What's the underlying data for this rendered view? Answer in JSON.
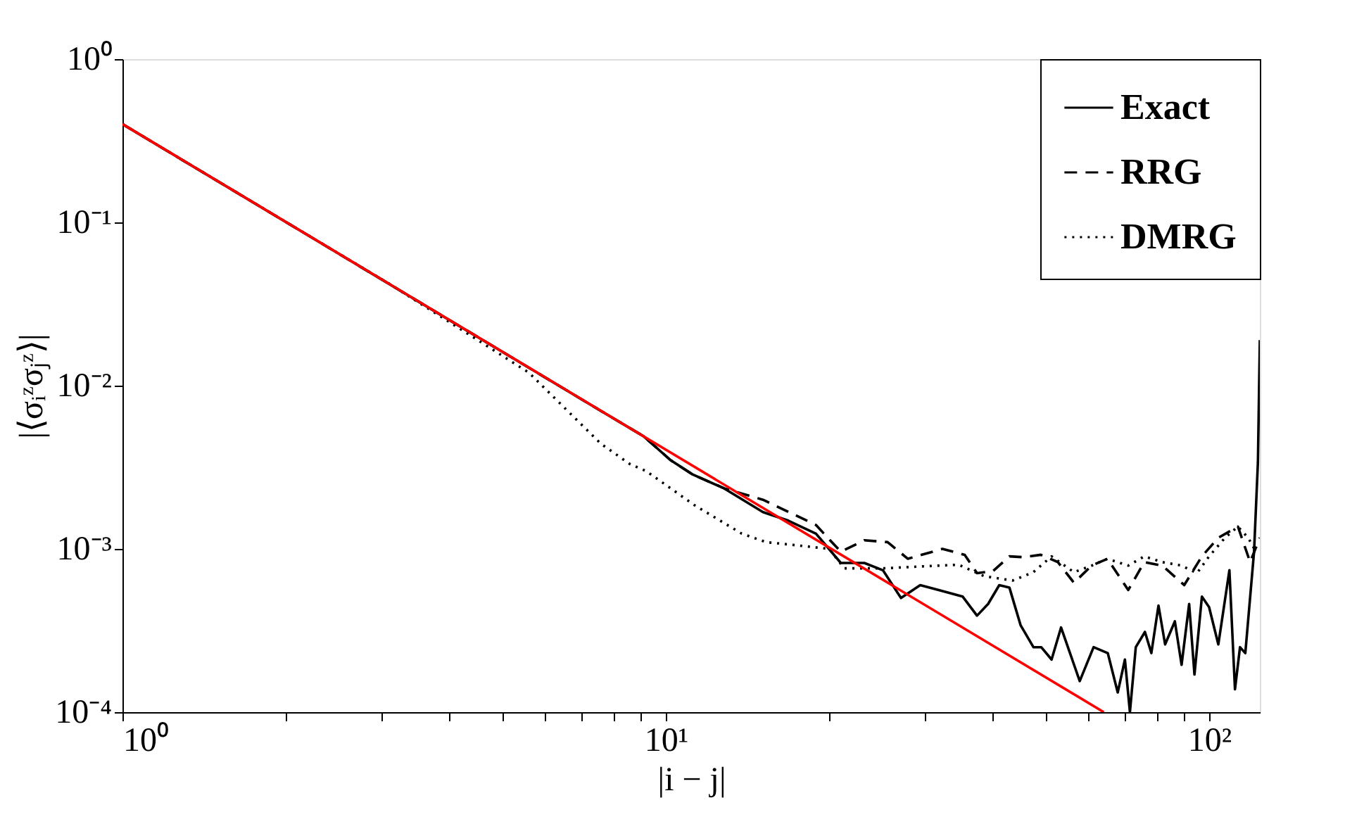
{
  "chart_data": {
    "type": "line",
    "xlabel": "|i − j|",
    "ylabel": "|⟨σᵢᶻσⱼᶻ⟩|",
    "log": "xy",
    "grid": false,
    "legend": "top right",
    "xlim": [
      1,
      124
    ],
    "ylim": [
      0.0001,
      1
    ],
    "xticks": [
      {
        "value": 1,
        "label": "10⁰"
      },
      {
        "value": 2,
        "label": null
      },
      {
        "value": 3,
        "label": null
      },
      {
        "value": 4,
        "label": null
      },
      {
        "value": 5,
        "label": null
      },
      {
        "value": 6,
        "label": null
      },
      {
        "value": 7,
        "label": null
      },
      {
        "value": 8,
        "label": null
      },
      {
        "value": 9,
        "label": null
      },
      {
        "value": 10,
        "label": "10¹"
      },
      {
        "value": 20,
        "label": null
      },
      {
        "value": 30,
        "label": null
      },
      {
        "value": 40,
        "label": null
      },
      {
        "value": 50,
        "label": null
      },
      {
        "value": 60,
        "label": null
      },
      {
        "value": 70,
        "label": null
      },
      {
        "value": 80,
        "label": null
      },
      {
        "value": 90,
        "label": null
      },
      {
        "value": 100,
        "label": "10²"
      }
    ],
    "yticks": [
      {
        "value": 0.0001,
        "label": "10⁻⁴"
      },
      {
        "value": 0.001,
        "label": "10⁻³"
      },
      {
        "value": 0.01,
        "label": "10⁻²"
      },
      {
        "value": 0.1,
        "label": "10⁻¹"
      },
      {
        "value": 1,
        "label": "10⁰"
      }
    ],
    "series": [
      {
        "name": "Exact",
        "color": "#000000",
        "line_style": "solid",
        "x": [
          1,
          7.6,
          9.1,
          10.2,
          11.2,
          12.8,
          15.1,
          16.8,
          18.9,
          21,
          23.2,
          25.1,
          27.1,
          29.4,
          31.8,
          35.2,
          37.4,
          39.2,
          41.1,
          42.9,
          45,
          47.5,
          49.1,
          51.3,
          53.4,
          57.8,
          61.3,
          65.1,
          67.9,
          70,
          71.5,
          73.3,
          76.2,
          78.3,
          80.7,
          83,
          86.5,
          89,
          91.9,
          94,
          97,
          100,
          104,
          109,
          111.6,
          114,
          116.6,
          121,
          123,
          124
        ],
        "values": [
          0.4,
          0.007,
          0.0049,
          0.0035,
          0.00286,
          0.00235,
          0.00168,
          0.00149,
          0.00124,
          0.00082,
          0.00082,
          0.00074,
          0.0005,
          0.0006,
          0.00056,
          0.00051,
          0.00039,
          0.00046,
          0.0006,
          0.00058,
          0.00034,
          0.00025,
          0.00025,
          0.00021,
          0.00033,
          0.000155,
          0.00025,
          0.00023,
          0.000132,
          0.00021,
          0.0001,
          0.00025,
          0.00031,
          0.00023,
          0.00045,
          0.00026,
          0.00036,
          0.000195,
          0.00046,
          0.00017,
          0.00051,
          0.00044,
          0.00026,
          0.00074,
          0.000138,
          0.00025,
          0.00023,
          0.00096,
          0.0034,
          0.019
        ]
      },
      {
        "name": "RRG",
        "color": "#000000",
        "line_style": "dashed",
        "x": [
          1,
          7.6,
          9.1,
          10.2,
          11.2,
          12.8,
          15.1,
          18.9,
          21,
          23.2,
          25.6,
          27.9,
          32.3,
          35.5,
          37.4,
          40,
          42.9,
          45.5,
          49,
          52.7,
          56.4,
          60.8,
          65,
          71,
          76,
          82,
          90,
          97,
          104,
          113,
          119,
          124
        ],
        "values": [
          0.4,
          0.007,
          0.0049,
          0.0035,
          0.00286,
          0.00235,
          0.002,
          0.0014,
          0.00096,
          0.00113,
          0.0011,
          0.00087,
          0.001,
          0.00092,
          0.00071,
          0.00073,
          0.0009,
          0.00089,
          0.00092,
          0.00083,
          0.00062,
          0.00079,
          0.00087,
          0.00056,
          0.00083,
          0.00079,
          0.0006,
          0.0009,
          0.00117,
          0.00137,
          0.00083,
          0.00117
        ]
      },
      {
        "name": "DMRG",
        "color": "#000000",
        "line_style": "dotted",
        "x": [
          1,
          3.1,
          5.6,
          7.6,
          8.6,
          9.2,
          11.3,
          13.8,
          15.3,
          17.5,
          20,
          21.3,
          25.1,
          29.4,
          34.6,
          38.6,
          43.5,
          47.5,
          51.3,
          56.4,
          60.8,
          65,
          71,
          76,
          82,
          89,
          95,
          100,
          107,
          113,
          118,
          122
        ],
        "values": [
          0.4,
          0.042,
          0.012,
          0.0044,
          0.0033,
          0.003,
          0.00185,
          0.00124,
          0.0011,
          0.00105,
          0.001,
          0.00076,
          0.00076,
          0.00078,
          0.0008,
          0.00068,
          0.00064,
          0.00072,
          0.0009,
          0.00072,
          0.00079,
          0.00087,
          0.00079,
          0.0009,
          0.00083,
          0.00079,
          0.00071,
          0.0009,
          0.00117,
          0.00137,
          0.00117,
          0.00096
        ]
      },
      {
        "type": "line",
        "color": "#ff0000",
        "line_style": "solid",
        "x": [
          1,
          64
        ],
        "values": [
          0.4,
          0.0001
        ]
      }
    ]
  }
}
